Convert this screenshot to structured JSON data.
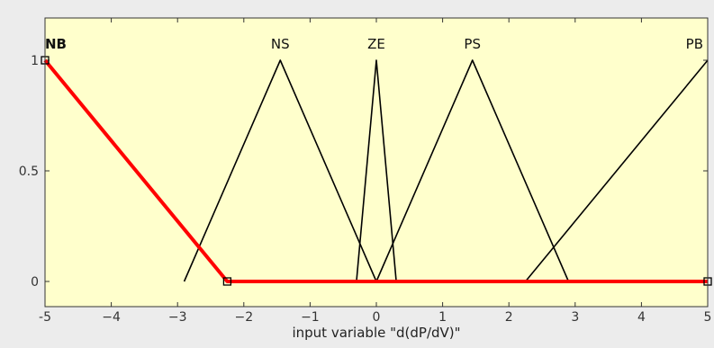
{
  "chart_data": {
    "type": "line",
    "xlabel": "input variable \"d(dP/dV)\"",
    "xlim": [
      -5,
      5
    ],
    "ylim": [
      0,
      1
    ],
    "x_ticks": [
      -5,
      -4,
      -3,
      -2,
      -1,
      0,
      1,
      2,
      3,
      4,
      5
    ],
    "x_tick_labels": [
      "-5",
      "−4",
      "−3",
      "−2",
      "−1",
      "0",
      "1",
      "2",
      "3",
      "4",
      "5"
    ],
    "y_ticks": [
      0,
      0.5,
      1
    ],
    "y_tick_labels": [
      "0",
      "0.5",
      "1"
    ],
    "background_color": "#ffffcc",
    "selected_color": "#ff0000",
    "line_color": "#000000",
    "selected_series": "NB",
    "series": [
      {
        "name": "NB",
        "points": [
          [
            -5,
            1
          ],
          [
            -2.25,
            0
          ],
          [
            5,
            0
          ]
        ],
        "selected": true
      },
      {
        "name": "NS",
        "points": [
          [
            -2.9,
            0
          ],
          [
            -1.45,
            1
          ],
          [
            0,
            0
          ]
        ]
      },
      {
        "name": "ZE",
        "points": [
          [
            -0.3,
            0
          ],
          [
            0,
            1
          ],
          [
            0.3,
            0
          ]
        ]
      },
      {
        "name": "PS",
        "points": [
          [
            0,
            0
          ],
          [
            1.45,
            1
          ],
          [
            2.9,
            0
          ]
        ]
      },
      {
        "name": "PB",
        "points": [
          [
            2.25,
            0
          ],
          [
            5,
            1
          ]
        ]
      }
    ]
  }
}
